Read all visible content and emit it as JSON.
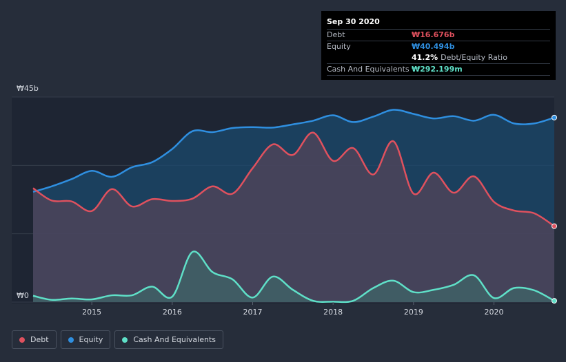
{
  "chart_data": {
    "type": "area",
    "y_axis": {
      "top_label": "₩45b",
      "bottom_label": "₩0",
      "ylim": [
        0,
        45
      ]
    },
    "x_ticks": [
      "2015",
      "2016",
      "2017",
      "2018",
      "2019",
      "2020"
    ],
    "xlim": [
      2014.27,
      2020.75
    ],
    "colors": {
      "debt": "#e0515e",
      "equity": "#2f8fe0",
      "cash": "#5fe0c8"
    },
    "series": [
      {
        "name": "Debt",
        "key": "debt",
        "x": [
          2014.27,
          2014.5,
          2014.75,
          2015.0,
          2015.25,
          2015.5,
          2015.75,
          2016.0,
          2016.25,
          2016.5,
          2016.75,
          2017.0,
          2017.25,
          2017.5,
          2017.75,
          2018.0,
          2018.25,
          2018.5,
          2018.75,
          2019.0,
          2019.25,
          2019.5,
          2019.75,
          2020.0,
          2020.25,
          2020.5,
          2020.75
        ],
        "values": [
          25,
          22.3,
          22.1,
          20.0,
          24.8,
          21.0,
          22.6,
          22.2,
          22.7,
          25.4,
          23.8,
          29.4,
          34.6,
          32.3,
          37.2,
          31.0,
          33.8,
          28.0,
          35.3,
          23.8,
          28.4,
          24.0,
          27.6,
          22.0,
          20.1,
          19.5,
          16.676
        ]
      },
      {
        "name": "Equity",
        "key": "equity",
        "x": [
          2014.27,
          2014.5,
          2014.75,
          2015.0,
          2015.25,
          2015.5,
          2015.75,
          2016.0,
          2016.25,
          2016.5,
          2016.75,
          2017.0,
          2017.25,
          2017.5,
          2017.75,
          2018.0,
          2018.25,
          2018.5,
          2018.75,
          2019.0,
          2019.25,
          2019.5,
          2019.75,
          2020.0,
          2020.25,
          2020.5,
          2020.75
        ],
        "values": [
          24.2,
          25.4,
          27.0,
          28.8,
          27.5,
          29.6,
          30.7,
          33.6,
          37.5,
          37.3,
          38.2,
          38.4,
          38.3,
          39.0,
          39.8,
          41.0,
          39.5,
          40.7,
          42.2,
          41.3,
          40.3,
          40.8,
          39.8,
          41.1,
          39.2,
          39.2,
          40.494
        ]
      },
      {
        "name": "Cash And Equivalents",
        "key": "cash",
        "x": [
          2014.27,
          2014.5,
          2014.75,
          2015.0,
          2015.25,
          2015.5,
          2015.75,
          2016.0,
          2016.25,
          2016.5,
          2016.75,
          2017.0,
          2017.25,
          2017.5,
          2017.75,
          2018.0,
          2018.25,
          2018.5,
          2018.75,
          2019.0,
          2019.25,
          2019.5,
          2019.75,
          2020.0,
          2020.25,
          2020.5,
          2020.75
        ],
        "values": [
          1.4,
          0.5,
          0.8,
          0.6,
          1.5,
          1.5,
          3.4,
          1.2,
          11.0,
          6.6,
          5.0,
          1.0,
          5.6,
          2.7,
          0.3,
          0.1,
          0.3,
          3.1,
          4.7,
          2.2,
          2.7,
          3.8,
          5.9,
          0.9,
          3.1,
          2.6,
          0.292
        ]
      }
    ],
    "tooltip": {
      "date": "Sep 30 2020",
      "debt_label": "Debt",
      "debt_value": "₩16.676b",
      "equity_label": "Equity",
      "equity_value": "₩40.494b",
      "ratio_value": "41.2%",
      "ratio_label": "Debt/Equity Ratio",
      "cash_label": "Cash And Equivalents",
      "cash_value": "₩292.199m"
    },
    "legend": [
      {
        "label": "Debt",
        "key": "debt"
      },
      {
        "label": "Equity",
        "key": "equity"
      },
      {
        "label": "Cash And Equivalents",
        "key": "cash"
      }
    ]
  }
}
